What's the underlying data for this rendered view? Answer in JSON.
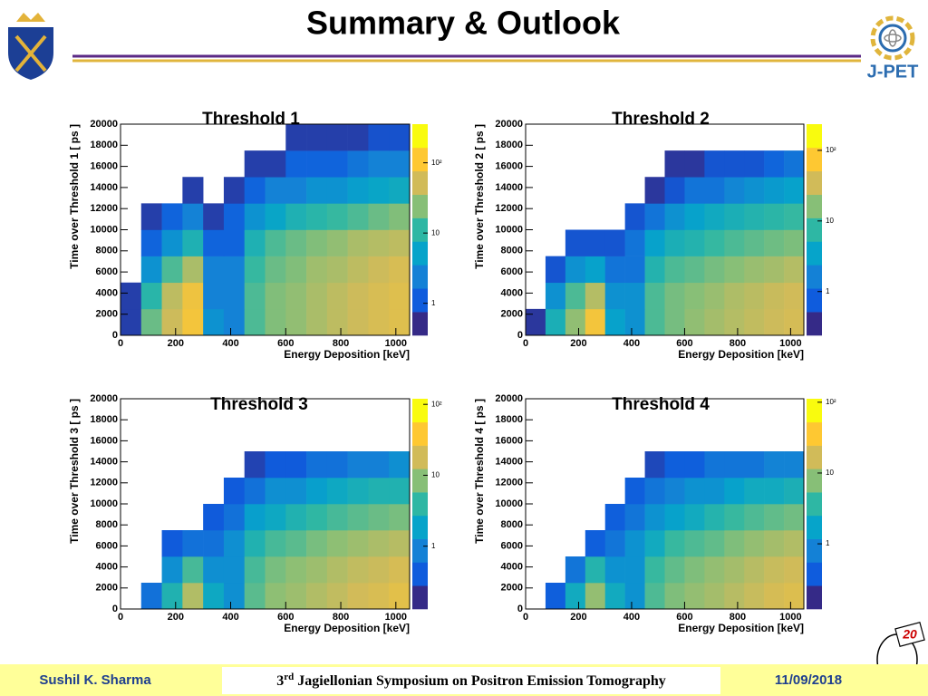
{
  "header": {
    "title": "Summary & Outlook",
    "logo_text": "J-PET",
    "badge": "20"
  },
  "chart_data": [
    {
      "type": "heatmap",
      "title": "Threshold 1",
      "x_label": "Energy Deposition [keV]",
      "y_label": "Time over Threshold 1  [ ps ]",
      "xbins": [
        0,
        75,
        150,
        225,
        300,
        375,
        450,
        525,
        600,
        675,
        750,
        825,
        900,
        975,
        1050
      ],
      "ybins": [
        0,
        2500,
        5000,
        7500,
        10000,
        12500,
        15000,
        17500,
        20000
      ],
      "counts": [
        [
          0.5,
          20,
          60,
          120,
          3,
          2,
          15,
          25,
          30,
          40,
          50,
          60,
          70,
          80
        ],
        [
          0.5,
          10,
          50,
          110,
          2,
          2,
          15,
          25,
          30,
          40,
          50,
          60,
          70,
          80
        ],
        [
          0,
          3,
          15,
          40,
          2,
          2,
          12,
          20,
          25,
          35,
          40,
          50,
          60,
          70
        ],
        [
          0,
          1,
          3,
          8,
          1,
          1,
          8,
          15,
          20,
          25,
          30,
          40,
          45,
          50
        ],
        [
          0,
          0.5,
          1,
          2,
          0.5,
          1,
          3,
          5,
          8,
          10,
          12,
          15,
          20,
          25
        ],
        [
          0,
          0,
          0,
          0.5,
          0,
          0.5,
          1,
          2,
          2,
          3,
          3,
          4,
          5,
          6
        ],
        [
          0,
          0,
          0,
          0,
          0,
          0,
          0.5,
          0.5,
          1,
          1,
          1,
          1.5,
          2,
          2
        ],
        [
          0,
          0,
          0,
          0,
          0,
          0,
          0,
          0,
          0.5,
          0.5,
          0.5,
          0.5,
          0.7,
          0.7
        ]
      ],
      "xlim": [
        0,
        1050
      ],
      "ylim": [
        0,
        20000
      ],
      "xticks": [
        0,
        200,
        400,
        600,
        800,
        1000
      ],
      "yticks": [
        0,
        2000,
        4000,
        6000,
        8000,
        10000,
        12000,
        14000,
        16000,
        18000,
        20000
      ],
      "zlim": [
        0.35,
        355
      ],
      "zticks": [
        1,
        10,
        {
          "value": 100,
          "label": "10²"
        }
      ],
      "log_z": true,
      "colormap": [
        "#352a87",
        "#0f5cdd",
        "#1481d6",
        "#06a4ca",
        "#2eb7a4",
        "#87bf77",
        "#d1bb59",
        "#fec832",
        "#f9fb0e"
      ]
    },
    {
      "type": "heatmap",
      "title": "Threshold 2",
      "x_label": "Energy Deposition [keV]",
      "y_label": "Time over Threshold 2  [ ps ]",
      "xbins": [
        0,
        75,
        150,
        225,
        300,
        375,
        450,
        525,
        600,
        675,
        750,
        825,
        900,
        975,
        1050
      ],
      "ybins": [
        0,
        2500,
        5000,
        7500,
        10000,
        12500,
        15000,
        17500,
        20000
      ],
      "counts": [
        [
          0.3,
          5,
          20,
          80,
          3,
          2,
          10,
          15,
          20,
          25,
          30,
          35,
          40,
          45
        ],
        [
          0,
          2,
          10,
          30,
          2,
          2,
          10,
          15,
          18,
          22,
          28,
          32,
          38,
          42
        ],
        [
          0,
          0.5,
          2,
          3,
          1,
          1,
          6,
          10,
          12,
          15,
          18,
          22,
          25,
          30
        ],
        [
          0,
          0,
          0.5,
          0.5,
          0.5,
          1,
          3,
          5,
          6,
          8,
          10,
          12,
          14,
          16
        ],
        [
          0,
          0,
          0,
          0,
          0,
          0.5,
          1,
          2,
          3,
          4,
          5,
          6,
          7,
          8
        ],
        [
          0,
          0,
          0,
          0,
          0,
          0,
          0.3,
          0.5,
          1,
          1,
          1.5,
          2,
          2.5,
          3
        ],
        [
          0,
          0,
          0,
          0,
          0,
          0,
          0,
          0.3,
          0.3,
          0.5,
          0.5,
          0.5,
          0.7,
          1
        ],
        [
          0,
          0,
          0,
          0,
          0,
          0,
          0,
          0,
          0,
          0,
          0,
          0,
          0,
          0
        ]
      ],
      "xlim": [
        0,
        1050
      ],
      "ylim": [
        0,
        20000
      ],
      "xticks": [
        0,
        200,
        400,
        600,
        800,
        1000
      ],
      "yticks": [
        0,
        2000,
        4000,
        6000,
        8000,
        10000,
        12000,
        14000,
        16000,
        18000,
        20000
      ],
      "zlim": [
        0.24,
        235
      ],
      "zticks": [
        1,
        10,
        {
          "value": 100,
          "label": "10²"
        }
      ],
      "log_z": true,
      "colormap": [
        "#352a87",
        "#0f5cdd",
        "#1481d6",
        "#06a4ca",
        "#2eb7a4",
        "#87bf77",
        "#d1bb59",
        "#fec832",
        "#f9fb0e"
      ]
    },
    {
      "type": "heatmap",
      "title": "Threshold 3",
      "x_label": "Energy Deposition [keV]",
      "y_label": "Time over Threshold 3  [ ps ]",
      "xbins": [
        0,
        75,
        150,
        225,
        300,
        375,
        450,
        525,
        600,
        675,
        750,
        825,
        900,
        975,
        1050
      ],
      "ybins": [
        0,
        2500,
        5000,
        7500,
        10000,
        12500,
        15000,
        17500,
        20000
      ],
      "counts": [
        [
          0,
          0.5,
          3,
          15,
          2,
          1,
          6,
          10,
          12,
          15,
          18,
          22,
          25,
          30
        ],
        [
          0,
          0,
          1,
          5,
          1,
          1,
          5,
          8,
          10,
          12,
          15,
          18,
          20,
          24
        ],
        [
          0,
          0,
          0.3,
          0.5,
          0.5,
          1,
          3,
          5,
          6,
          8,
          10,
          12,
          14,
          16
        ],
        [
          0,
          0,
          0,
          0,
          0.3,
          0.5,
          1.5,
          2,
          3,
          4,
          5,
          6,
          7,
          8
        ],
        [
          0,
          0,
          0,
          0,
          0,
          0.3,
          0.5,
          1,
          1,
          1.5,
          2,
          2.5,
          3,
          3
        ],
        [
          0,
          0,
          0,
          0,
          0,
          0,
          0.2,
          0.3,
          0.3,
          0.5,
          0.5,
          0.7,
          0.7,
          1
        ],
        [
          0,
          0,
          0,
          0,
          0,
          0,
          0,
          0,
          0,
          0,
          0,
          0,
          0,
          0
        ],
        [
          0,
          0,
          0,
          0,
          0,
          0,
          0,
          0,
          0,
          0,
          0,
          0,
          0,
          0
        ]
      ],
      "xlim": [
        0,
        1050
      ],
      "ylim": [
        0,
        20000
      ],
      "xticks": [
        0,
        200,
        400,
        600,
        800,
        1000
      ],
      "yticks": [
        0,
        2000,
        4000,
        6000,
        8000,
        10000,
        12000,
        14000,
        16000,
        18000,
        20000
      ],
      "zlim": [
        0.13,
        120
      ],
      "zticks": [
        1,
        10,
        {
          "value": 100,
          "label": "10²"
        }
      ],
      "log_z": true,
      "colormap": [
        "#352a87",
        "#0f5cdd",
        "#1481d6",
        "#06a4ca",
        "#2eb7a4",
        "#87bf77",
        "#d1bb59",
        "#fec832",
        "#f9fb0e"
      ]
    },
    {
      "type": "heatmap",
      "title": "Threshold 4",
      "x_label": "Energy Deposition [keV]",
      "y_label": "Time over Threshold 4  [ ps ]",
      "xbins": [
        0,
        75,
        150,
        225,
        300,
        375,
        450,
        525,
        600,
        675,
        750,
        825,
        900,
        975,
        1050
      ],
      "ybins": [
        0,
        2500,
        5000,
        7500,
        10000,
        12500,
        15000,
        17500,
        20000
      ],
      "counts": [
        [
          0,
          0.3,
          2,
          10,
          2,
          1,
          5,
          8,
          10,
          12,
          15,
          18,
          22,
          25
        ],
        [
          0,
          0,
          0.5,
          3,
          1,
          1,
          4,
          6,
          8,
          10,
          12,
          15,
          18,
          20
        ],
        [
          0,
          0,
          0,
          0.3,
          0.5,
          1,
          2,
          4,
          5,
          6,
          8,
          10,
          12,
          14
        ],
        [
          0,
          0,
          0,
          0,
          0.3,
          0.5,
          1,
          1.5,
          2,
          3,
          4,
          5,
          6,
          7
        ],
        [
          0,
          0,
          0,
          0,
          0,
          0.3,
          0.5,
          0.7,
          1,
          1,
          1.5,
          2,
          2,
          2.5
        ],
        [
          0,
          0,
          0,
          0,
          0,
          0,
          0.2,
          0.3,
          0.3,
          0.5,
          0.5,
          0.5,
          0.7,
          0.7
        ],
        [
          0,
          0,
          0,
          0,
          0,
          0,
          0,
          0,
          0,
          0,
          0,
          0,
          0,
          0
        ],
        [
          0,
          0,
          0,
          0,
          0,
          0,
          0,
          0,
          0,
          0,
          0,
          0,
          0,
          0
        ]
      ],
      "xlim": [
        0,
        1050
      ],
      "ylim": [
        0,
        20000
      ],
      "xticks": [
        0,
        200,
        400,
        600,
        800,
        1000
      ],
      "yticks": [
        0,
        2000,
        4000,
        6000,
        8000,
        10000,
        12000,
        14000,
        16000,
        18000,
        20000
      ],
      "zlim": [
        0.12,
        112
      ],
      "zticks": [
        1,
        10,
        {
          "value": 100,
          "label": "10²"
        }
      ],
      "log_z": true,
      "colormap": [
        "#352a87",
        "#0f5cdd",
        "#1481d6",
        "#06a4ca",
        "#2eb7a4",
        "#87bf77",
        "#d1bb59",
        "#fec832",
        "#f9fb0e"
      ]
    }
  ],
  "footer": {
    "author": "Sushil K. Sharma",
    "event_number": "3",
    "event_suffix": "rd",
    "event_name": " Jagiellonian Symposium on Positron Emission Tomography",
    "date": "11/09/2018"
  }
}
